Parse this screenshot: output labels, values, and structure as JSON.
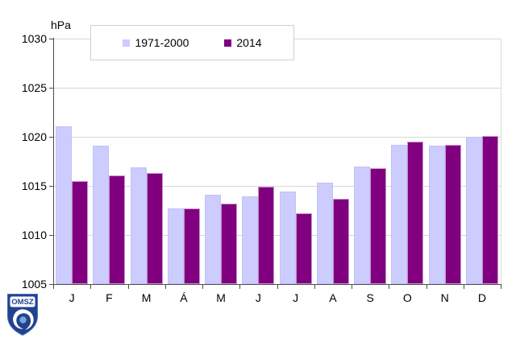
{
  "chart_data": {
    "type": "bar",
    "title": "",
    "ylabel": "hPa",
    "xlabel": "",
    "categories": [
      "J",
      "F",
      "M",
      "Á",
      "M",
      "J",
      "J",
      "A",
      "S",
      "O",
      "N",
      "D"
    ],
    "series": [
      {
        "name": "1971-2000",
        "color": "#ccccff",
        "values": [
          1021.1,
          1019.1,
          1016.9,
          1012.7,
          1014.1,
          1013.9,
          1014.4,
          1015.3,
          1017.0,
          1019.2,
          1019.1,
          1020.0
        ]
      },
      {
        "name": "2014",
        "color": "#800080",
        "values": [
          1015.5,
          1016.1,
          1016.3,
          1012.7,
          1013.2,
          1014.9,
          1012.2,
          1013.7,
          1016.8,
          1019.5,
          1019.2,
          1020.1
        ]
      }
    ],
    "ylim": [
      1005,
      1030
    ],
    "yticks": [
      1030,
      1025,
      1020,
      1015,
      1010,
      1005
    ],
    "grid": true,
    "legend_position": "top"
  },
  "colors": {
    "series1_fill": "#ccccff",
    "series2_fill": "#800080",
    "gridline": "#d7d7d7",
    "axis": "#4d4d4d"
  },
  "logo": {
    "text": "OMSZ",
    "shield_color": "#24418e",
    "wave_color": "#6fa8dc"
  }
}
